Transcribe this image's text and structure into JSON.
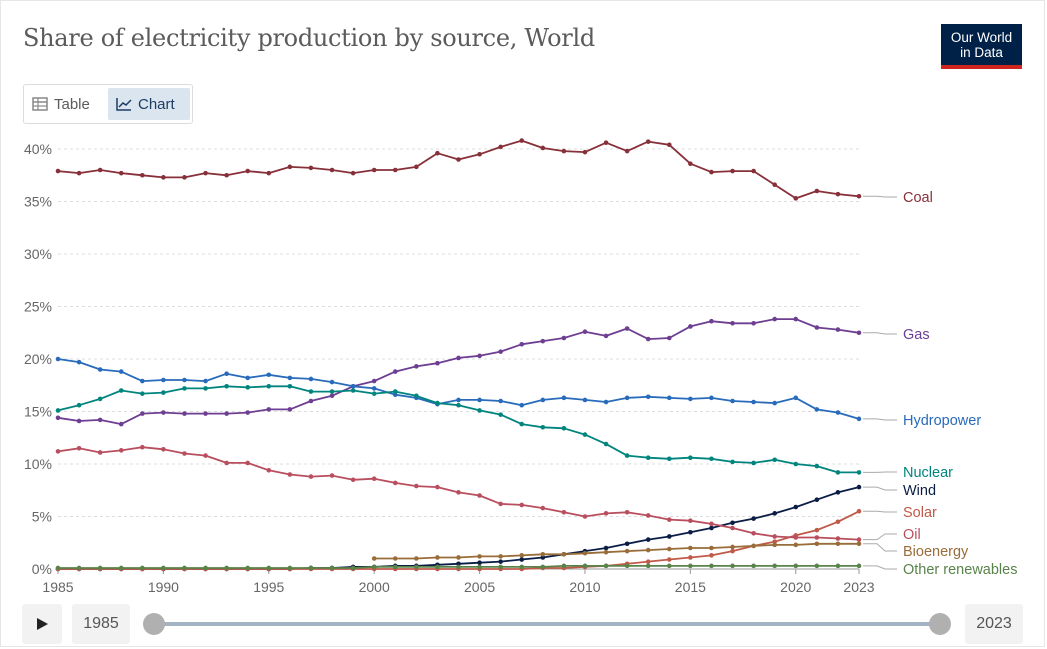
{
  "header": {
    "title": "Share of electricity production by source, World",
    "logo_line1": "Our World",
    "logo_line2": "in Data"
  },
  "tabs": {
    "table_label": "Table",
    "chart_label": "Chart",
    "active": "Chart"
  },
  "timeline": {
    "start_label": "1985",
    "end_label": "2023"
  },
  "colors": {
    "Coal": "#883039",
    "Gas": "#6d3e91",
    "Hydropower": "#286bbb",
    "Nuclear": "#00847e",
    "Wind": "#0a1d44",
    "Solar": "#c05a49",
    "Oil": "#b94e5e",
    "Bioenergy": "#996d39",
    "Other renewables": "#58834a",
    "grid": "#dddddd",
    "axis_text": "#666666"
  },
  "chart_data": {
    "type": "line",
    "title": "Share of electricity production by source, World",
    "xlim": [
      1985,
      2023
    ],
    "ylim": [
      0,
      40
    ],
    "x_ticks": [
      1985,
      1990,
      1995,
      2000,
      2005,
      2010,
      2015,
      2020,
      2023
    ],
    "x_tick_labels": [
      "1985",
      "1990",
      "1995",
      "2000",
      "2005",
      "2010",
      "2015",
      "2020",
      "2023"
    ],
    "y_ticks": [
      0,
      5,
      10,
      15,
      20,
      25,
      30,
      35,
      40
    ],
    "y_tick_labels": [
      "0%",
      "5%",
      "10%",
      "15%",
      "20%",
      "25%",
      "30%",
      "35%",
      "40%"
    ],
    "grid": "horizontal dotted",
    "legend": "line-end labels on right",
    "x": [
      1985,
      1986,
      1987,
      1988,
      1989,
      1990,
      1991,
      1992,
      1993,
      1994,
      1995,
      1996,
      1997,
      1998,
      1999,
      2000,
      2001,
      2002,
      2003,
      2004,
      2005,
      2006,
      2007,
      2008,
      2009,
      2010,
      2011,
      2012,
      2013,
      2014,
      2015,
      2016,
      2017,
      2018,
      2019,
      2020,
      2021,
      2022,
      2023
    ],
    "series": [
      {
        "name": "Coal",
        "values": [
          37.9,
          37.7,
          38.0,
          37.7,
          37.5,
          37.3,
          37.3,
          37.7,
          37.5,
          37.9,
          37.7,
          38.3,
          38.2,
          38.0,
          37.7,
          38.0,
          38.0,
          38.3,
          39.6,
          39.0,
          39.5,
          40.2,
          40.8,
          40.1,
          39.8,
          39.7,
          40.6,
          39.8,
          40.7,
          40.4,
          38.6,
          37.8,
          37.9,
          37.9,
          36.6,
          35.3,
          36.0,
          35.7,
          35.5
        ]
      },
      {
        "name": "Gas",
        "values": [
          14.4,
          14.1,
          14.2,
          13.8,
          14.8,
          14.9,
          14.8,
          14.8,
          14.8,
          14.9,
          15.2,
          15.2,
          16.0,
          16.5,
          17.4,
          17.9,
          18.8,
          19.3,
          19.6,
          20.1,
          20.3,
          20.7,
          21.4,
          21.7,
          22.0,
          22.6,
          22.2,
          22.9,
          21.9,
          22.0,
          23.1,
          23.6,
          23.4,
          23.4,
          23.8,
          23.8,
          23.0,
          22.8,
          22.5
        ]
      },
      {
        "name": "Hydropower",
        "values": [
          20.0,
          19.7,
          19.0,
          18.8,
          17.9,
          18.0,
          18.0,
          17.9,
          18.6,
          18.2,
          18.5,
          18.2,
          18.1,
          17.8,
          17.4,
          17.2,
          16.6,
          16.3,
          15.7,
          16.1,
          16.1,
          16.0,
          15.6,
          16.1,
          16.3,
          16.1,
          15.9,
          16.3,
          16.4,
          16.3,
          16.2,
          16.3,
          16.0,
          15.9,
          15.8,
          16.3,
          15.2,
          14.9,
          14.3
        ]
      },
      {
        "name": "Nuclear",
        "values": [
          15.1,
          15.6,
          16.2,
          17.0,
          16.7,
          16.8,
          17.2,
          17.2,
          17.4,
          17.3,
          17.4,
          17.4,
          16.9,
          16.9,
          17.0,
          16.7,
          16.9,
          16.5,
          15.8,
          15.6,
          15.1,
          14.7,
          13.8,
          13.5,
          13.4,
          12.8,
          11.9,
          10.8,
          10.6,
          10.5,
          10.6,
          10.5,
          10.2,
          10.1,
          10.4,
          10.0,
          9.8,
          9.2,
          9.2
        ]
      },
      {
        "name": "Wind",
        "values": [
          0.0,
          0.0,
          0.0,
          0.0,
          0.0,
          0.0,
          0.0,
          0.0,
          0.0,
          0.0,
          0.0,
          0.0,
          0.1,
          0.1,
          0.2,
          0.2,
          0.3,
          0.3,
          0.4,
          0.5,
          0.6,
          0.7,
          0.9,
          1.1,
          1.4,
          1.7,
          2.0,
          2.4,
          2.8,
          3.1,
          3.5,
          3.9,
          4.4,
          4.8,
          5.3,
          5.9,
          6.6,
          7.3,
          7.8
        ]
      },
      {
        "name": "Solar",
        "values": [
          0.0,
          0.0,
          0.0,
          0.0,
          0.0,
          0.0,
          0.0,
          0.0,
          0.0,
          0.0,
          0.0,
          0.0,
          0.0,
          0.0,
          0.0,
          0.0,
          0.0,
          0.0,
          0.0,
          0.0,
          0.0,
          0.0,
          0.0,
          0.1,
          0.1,
          0.2,
          0.3,
          0.5,
          0.7,
          0.9,
          1.1,
          1.3,
          1.7,
          2.2,
          2.6,
          3.2,
          3.7,
          4.5,
          5.5
        ]
      },
      {
        "name": "Oil",
        "values": [
          11.2,
          11.5,
          11.1,
          11.3,
          11.6,
          11.4,
          11.0,
          10.8,
          10.1,
          10.1,
          9.4,
          9.0,
          8.8,
          8.9,
          8.5,
          8.6,
          8.2,
          7.9,
          7.8,
          7.3,
          7.0,
          6.2,
          6.1,
          5.8,
          5.4,
          5.0,
          5.3,
          5.4,
          5.1,
          4.7,
          4.6,
          4.3,
          3.9,
          3.4,
          3.1,
          3.0,
          3.0,
          2.9,
          2.8
        ]
      },
      {
        "name": "Bioenergy",
        "values": [
          null,
          null,
          null,
          null,
          null,
          null,
          null,
          null,
          null,
          null,
          null,
          null,
          null,
          null,
          null,
          1.0,
          1.0,
          1.0,
          1.1,
          1.1,
          1.2,
          1.2,
          1.3,
          1.4,
          1.4,
          1.5,
          1.6,
          1.7,
          1.8,
          1.9,
          2.0,
          2.0,
          2.1,
          2.2,
          2.3,
          2.3,
          2.4,
          2.4,
          2.4
        ]
      },
      {
        "name": "Other renewables",
        "values": [
          0.1,
          0.1,
          0.1,
          0.1,
          0.1,
          0.1,
          0.1,
          0.1,
          0.1,
          0.1,
          0.1,
          0.1,
          0.1,
          0.1,
          0.1,
          0.2,
          0.2,
          0.2,
          0.2,
          0.2,
          0.2,
          0.2,
          0.2,
          0.2,
          0.3,
          0.3,
          0.3,
          0.3,
          0.3,
          0.3,
          0.3,
          0.3,
          0.3,
          0.3,
          0.3,
          0.3,
          0.3,
          0.3,
          0.3
        ]
      }
    ]
  }
}
